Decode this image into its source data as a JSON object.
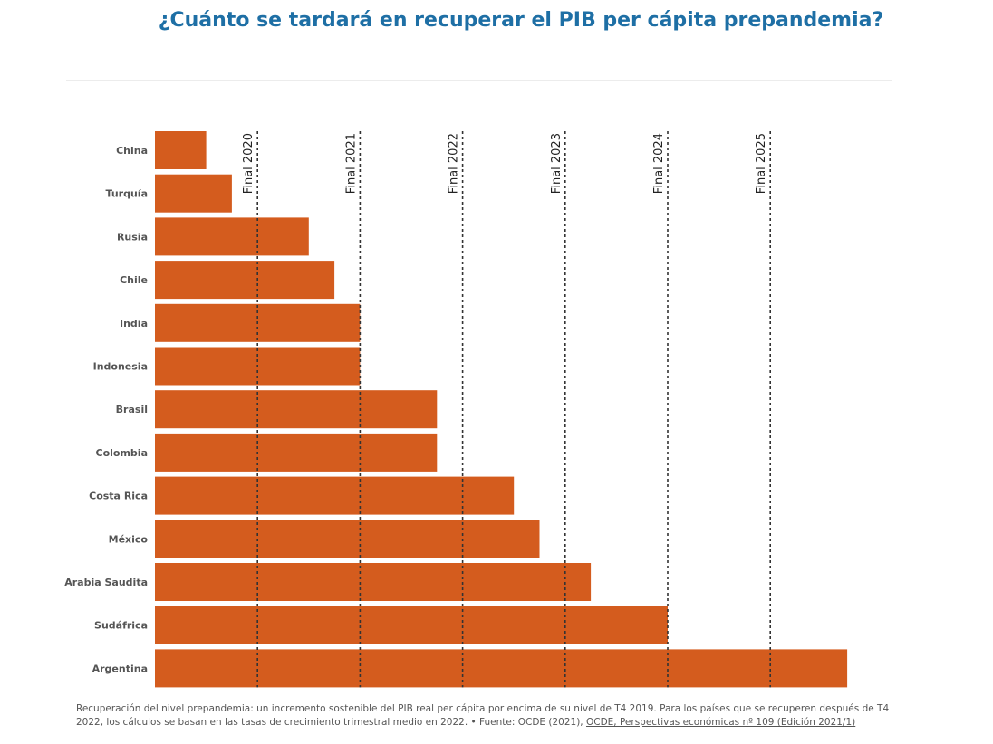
{
  "chart_data": {
    "type": "bar",
    "orientation": "horizontal",
    "title": "¿Cuánto se tardará en recuperar el PIB per cápita prepandemia?",
    "categories": [
      "China",
      "Turquía",
      "Rusia",
      "Chile",
      "India",
      "Indonesia",
      "Brasil",
      "Colombia",
      "Costa Rica",
      "México",
      "Arabia Saudita",
      "Sudáfrica",
      "Argentina"
    ],
    "values": [
      2,
      3,
      6,
      7,
      8,
      8,
      11,
      11,
      14,
      15,
      17,
      20,
      27
    ],
    "value_unit": "trimestres desde T4 2019",
    "xlim": [
      0,
      27
    ],
    "bar_color": "#d45c1e",
    "reference_lines": [
      {
        "label": "Final 2020",
        "x": 4
      },
      {
        "label": "Final 2021",
        "x": 8
      },
      {
        "label": "Final 2022",
        "x": 12
      },
      {
        "label": "Final 2023",
        "x": 16
      },
      {
        "label": "Final 2024",
        "x": 20
      },
      {
        "label": "Final 2025",
        "x": 24
      }
    ],
    "grid": false,
    "legend": "none"
  },
  "footnote": {
    "text": "Recuperación del nivel prepandemia: un incremento sostenible del PIB real per cápita por encima de su nivel de T4 2019. Para los países que se recuperen después de T4 2022, los cálculos se basan en las tasas de crecimiento trimestral medio en 2022. • Fuente: OCDE (2021), ",
    "link": "OCDE, Perspectivas económicas nº 109 (Edición 2021/1)"
  }
}
